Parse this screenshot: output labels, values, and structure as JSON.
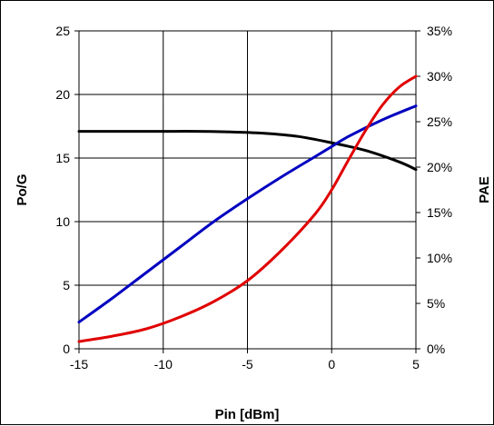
{
  "chart_data": {
    "type": "line",
    "title": "",
    "xlabel": "Pin [dBm]",
    "ylabel": "Po/G",
    "y2label": "PAE",
    "xlim": [
      -15,
      5
    ],
    "ylim": [
      0,
      25
    ],
    "y2lim": [
      0,
      35
    ],
    "x_ticks": [
      -15,
      -10,
      -5,
      0,
      5
    ],
    "y_ticks": [
      0,
      5,
      10,
      15,
      20,
      25
    ],
    "y2_ticks": [
      "0%",
      "5%",
      "10%",
      "15%",
      "20%",
      "25%",
      "30%",
      "35%"
    ],
    "grid": true,
    "legend": "none",
    "series": [
      {
        "axis": "left",
        "color": "#000000",
        "x": [
          -15,
          -12,
          -10,
          -8,
          -6,
          -4,
          -2,
          0,
          2,
          4,
          5
        ],
        "y": [
          17.1,
          17.1,
          17.1,
          17.1,
          17.05,
          16.95,
          16.7,
          16.2,
          15.6,
          14.7,
          14.1
        ]
      },
      {
        "axis": "left",
        "color": "#0000c0",
        "x": [
          -15,
          -13,
          -11,
          -9,
          -7,
          -5,
          -3,
          -1,
          0,
          1,
          3,
          5
        ],
        "y": [
          2.1,
          4.0,
          6.0,
          8.0,
          10.0,
          11.8,
          13.5,
          15.1,
          15.9,
          16.7,
          18.0,
          19.1
        ]
      },
      {
        "axis": "right",
        "color": "#e00000",
        "x": [
          -15,
          -13,
          -11,
          -9,
          -7,
          -5,
          -3,
          -1,
          0,
          1,
          2,
          3,
          4,
          5
        ],
        "y": [
          0.8,
          1.4,
          2.2,
          3.5,
          5.2,
          7.5,
          10.8,
          14.8,
          17.5,
          20.8,
          24.0,
          26.8,
          28.8,
          30.0
        ]
      }
    ]
  }
}
